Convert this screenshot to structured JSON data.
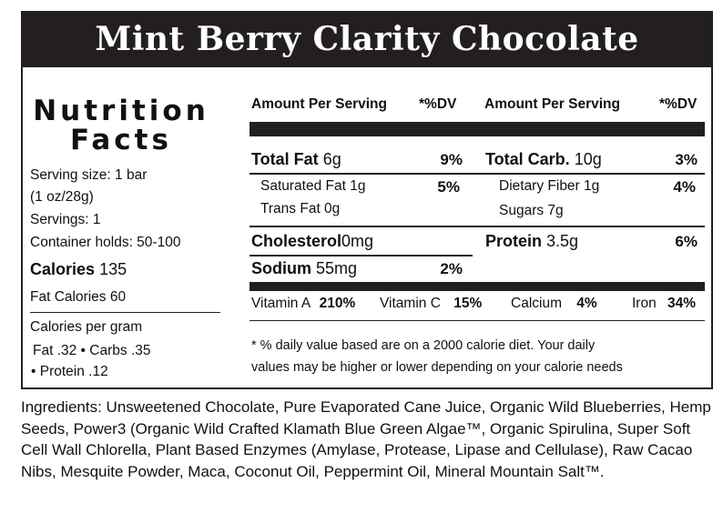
{
  "product_title": "Mint Berry Clarity Chocolate",
  "nutrition_heading": [
    "Nutrition",
    "Facts"
  ],
  "serving": {
    "serving_size_line1": "Serving size: 1 bar",
    "serving_size_line2": "(1 oz/28g)",
    "servings": "Servings: 1",
    "container": "Container holds: 50-100"
  },
  "calories": {
    "label": "Calories",
    "value": "135"
  },
  "fat_calories": "Fat Calories 60",
  "calories_per_gram": {
    "heading": "Calories per gram",
    "line1": "Fat .32 • Carbs .35",
    "line2": "• Protein .12"
  },
  "table_header": {
    "amount_left": "Amount Per Serving",
    "dv_left": "*%DV",
    "amount_right": "Amount Per Serving",
    "dv_right": "*%DV"
  },
  "nutrients_left": {
    "total_fat": {
      "label": "Total Fat",
      "amount": "6g",
      "dv": "9%"
    },
    "saturated_fat": {
      "label": "Saturated Fat 1g",
      "dv": "5%"
    },
    "trans_fat": {
      "label": "Trans Fat 0g"
    },
    "cholesterol": {
      "label": "Cholesterol",
      "amount": "0mg"
    },
    "sodium": {
      "label": "Sodium",
      "amount": "55mg",
      "dv": "2%"
    }
  },
  "nutrients_right": {
    "total_carb": {
      "label": "Total Carb.",
      "amount": "10g",
      "dv": "3%"
    },
    "dietary_fiber": {
      "label": "Dietary Fiber 1g",
      "dv": "4%"
    },
    "sugars": {
      "label": "Sugars 7g"
    },
    "protein": {
      "label": "Protein",
      "amount": "3.5g",
      "dv": "6%"
    }
  },
  "vitamins": {
    "vitamin_a": {
      "label": "Vitamin A",
      "dv": "210%"
    },
    "vitamin_c": {
      "label": "Vitamin C",
      "dv": "15%"
    },
    "calcium": {
      "label": "Calcium",
      "dv": "4%"
    },
    "iron": {
      "label": "Iron",
      "dv": "34%"
    }
  },
  "footnote": {
    "line1": "* % daily value based are on a 2000 calorie diet. Your daily",
    "line2": "values may be higher or lower depending on your calorie needs"
  },
  "ingredients": "Ingredients: Unsweetened Chocolate, Pure Evaporated Cane Juice, Organic Wild Blueberries, Hemp Seeds, Power3 (Organic Wild Crafted Klamath Blue Green Algae™, Organic Spirulina, Super Soft Cell Wall Chlorella, Plant Based Enzymes (Amylase, Protease, Lipase and Cellulase), Raw Cacao Nibs, Mesquite Powder, Maca, Coconut Oil, Peppermint Oil, Mineral Mountain Salt™."
}
